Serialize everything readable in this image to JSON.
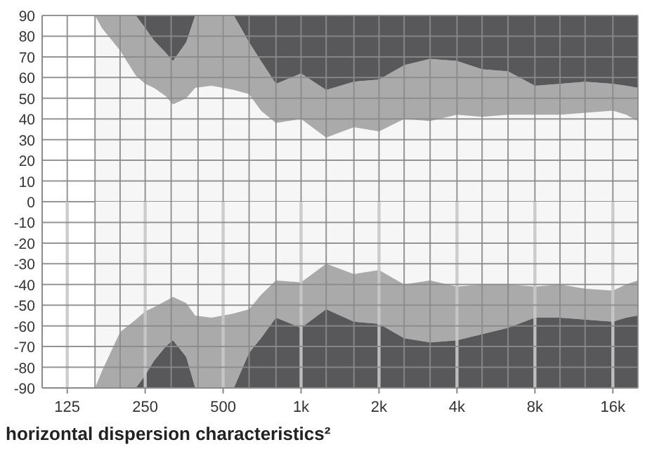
{
  "chart_data": [
    {
      "type": "area",
      "stacked": true,
      "log": "x",
      "grid": true,
      "tick_labels": "y",
      "xlim": [
        100,
        20000
      ],
      "ylim": [
        0,
        90
      ],
      "xticks": [
        100,
        125,
        160,
        200,
        250,
        315,
        400,
        500,
        630,
        800,
        1000,
        1250,
        1600,
        2000,
        2500,
        3150,
        4000,
        5000,
        6300,
        8000,
        10000,
        12500,
        16000,
        20000
      ],
      "yticks": [
        0,
        10,
        20,
        30,
        40,
        50,
        60,
        70,
        80,
        90
      ],
      "x": [
        160,
        170,
        200,
        230,
        250,
        270,
        300,
        320,
        360,
        390,
        450,
        500,
        550,
        630,
        700,
        800,
        1000,
        1250,
        1600,
        2000,
        2500,
        3150,
        4000,
        5000,
        6300,
        8000,
        10000,
        12500,
        16000,
        18000,
        20000
      ],
      "series": [
        {
          "color": "#f6f6f6",
          "values": [
            90,
            84,
            73,
            61,
            57,
            55,
            51,
            47,
            50,
            55,
            56,
            55,
            54,
            52,
            44,
            38,
            40,
            31,
            36,
            34,
            40,
            39,
            42,
            41,
            42,
            42,
            42,
            43,
            44,
            42,
            39
          ]
        },
        {
          "color": "#aaaaaa",
          "values": [
            0,
            6,
            17,
            29,
            27,
            23,
            21,
            21,
            27,
            35,
            34,
            35,
            36,
            25,
            24,
            19,
            22,
            23,
            22,
            25,
            26,
            30,
            26,
            23,
            21,
            14,
            15,
            15,
            13,
            14,
            16
          ]
        },
        {
          "color": "#58585a",
          "values": [
            0,
            0,
            0,
            0,
            6,
            12,
            18,
            22,
            13,
            0,
            0,
            0,
            0,
            13,
            22,
            33,
            28,
            36,
            32,
            31,
            24,
            21,
            22,
            26,
            27,
            34,
            33,
            32,
            33,
            34,
            35
          ]
        }
      ]
    },
    {
      "type": "area",
      "stacked": true,
      "log": "x",
      "grid": true,
      "title": "horizontal dispersion characteristics²",
      "xlim": [
        100,
        20000
      ],
      "ylim": [
        -90,
        0
      ],
      "xticks": [
        {
          "value": 100,
          "label": null
        },
        {
          "value": 125,
          "label": "125"
        },
        {
          "value": 160,
          "label": null
        },
        {
          "value": 200,
          "label": null
        },
        {
          "value": 250,
          "label": "250"
        },
        {
          "value": 315,
          "label": null
        },
        {
          "value": 400,
          "label": null
        },
        {
          "value": 500,
          "label": "500"
        },
        {
          "value": 630,
          "label": null
        },
        {
          "value": 800,
          "label": null
        },
        {
          "value": 1000,
          "label": "1k"
        },
        {
          "value": 1250,
          "label": null
        },
        {
          "value": 1600,
          "label": null
        },
        {
          "value": 2000,
          "label": "2k"
        },
        {
          "value": 2500,
          "label": null
        },
        {
          "value": 3150,
          "label": null
        },
        {
          "value": 4000,
          "label": "4k"
        },
        {
          "value": 5000,
          "label": null
        },
        {
          "value": 6300,
          "label": null
        },
        {
          "value": 8000,
          "label": "8k"
        },
        {
          "value": 10000,
          "label": null
        },
        {
          "value": 12500,
          "label": null
        },
        {
          "value": 16000,
          "label": "16k"
        },
        {
          "value": 20000,
          "label": null
        }
      ],
      "yticks": [
        -90,
        -80,
        -70,
        -60,
        -50,
        -40,
        -30,
        -20,
        -10
      ],
      "x": [
        160,
        170,
        200,
        230,
        250,
        270,
        300,
        320,
        360,
        390,
        450,
        500,
        550,
        630,
        700,
        800,
        1000,
        1250,
        1600,
        2000,
        2500,
        3150,
        4000,
        5000,
        6300,
        8000,
        10000,
        12500,
        16000,
        18000,
        20000
      ],
      "series": [
        {
          "color": "#f6f6f6",
          "values": [
            -90,
            -82,
            -63,
            -57,
            -53,
            -51,
            -48,
            -46,
            -49,
            -55,
            -56,
            -55,
            -54,
            -52,
            -45,
            -38,
            -39,
            -30,
            -35,
            -33,
            -40,
            -38,
            -41,
            -40,
            -40,
            -41,
            -40,
            -42,
            -43,
            -40,
            -38
          ]
        },
        {
          "color": "#aaaaaa",
          "values": [
            0,
            -8,
            -27,
            -33,
            -31,
            -26,
            -22,
            -21,
            -26,
            -35,
            -34,
            -35,
            -36,
            -21,
            -21,
            -18,
            -22,
            -22,
            -23,
            -26,
            -26,
            -30,
            -26,
            -24,
            -21,
            -15,
            -16,
            -15,
            -15,
            -16,
            -17
          ]
        },
        {
          "color": "#58585a",
          "values": [
            0,
            0,
            0,
            0,
            -6,
            -13,
            -20,
            -23,
            -15,
            0,
            0,
            0,
            0,
            -17,
            -24,
            -34,
            -29,
            -38,
            -32,
            -31,
            -24,
            -22,
            -23,
            -26,
            -29,
            -34,
            -34,
            -33,
            -32,
            -34,
            -35
          ]
        }
      ]
    }
  ]
}
